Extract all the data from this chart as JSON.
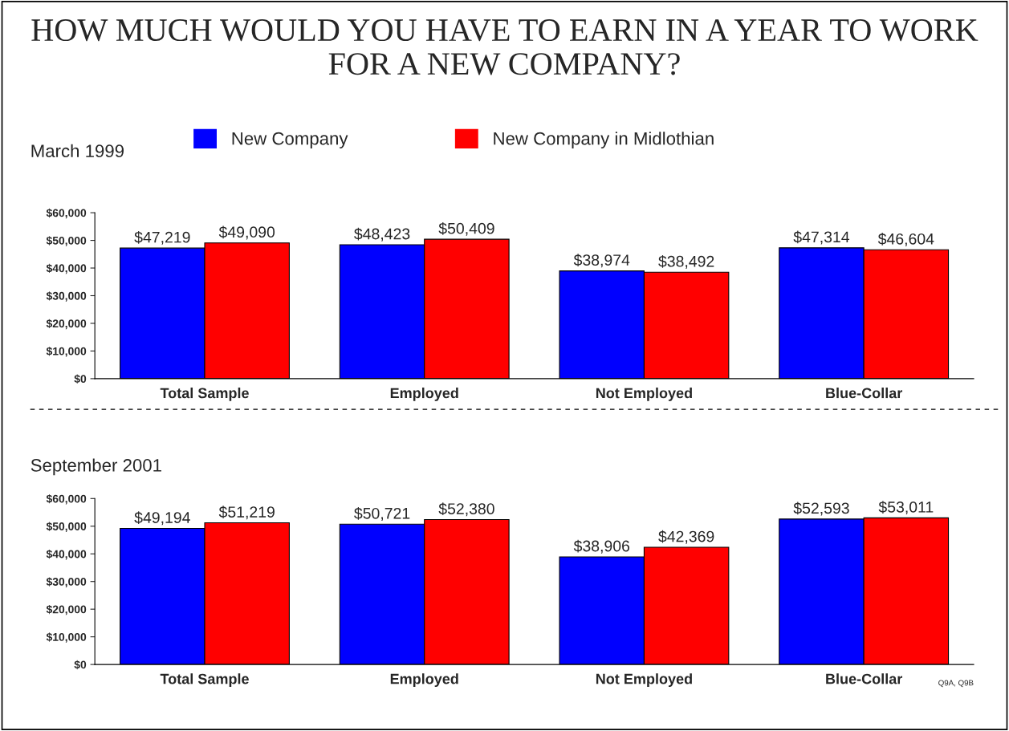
{
  "chart_data": [
    {
      "type": "bar",
      "title": "HOW MUCH WOULD YOU HAVE TO EARN IN A YEAR TO WORK FOR A NEW COMPANY?",
      "subtitle": "March 1999",
      "categories": [
        "Total Sample",
        "Employed",
        "Not Employed",
        "Blue-Collar"
      ],
      "series": [
        {
          "name": "New Company",
          "color": "#0000ff",
          "values": [
            47219,
            48423,
            38974,
            47314
          ],
          "value_labels": [
            "$47,219",
            "$48,423",
            "$38,974",
            "$47,314"
          ]
        },
        {
          "name": "New Company in Midlothian",
          "color": "#ff0000",
          "values": [
            49090,
            50409,
            38492,
            46604
          ],
          "value_labels": [
            "$49,090",
            "$50,409",
            "$38,492",
            "$46,604"
          ]
        }
      ],
      "ylim": [
        0,
        60000
      ],
      "yticks": [
        {
          "value": 0,
          "label": "$0"
        },
        {
          "value": 10000,
          "label": "$10,000"
        },
        {
          "value": 20000,
          "label": "$20,000"
        },
        {
          "value": 30000,
          "label": "$30,000"
        },
        {
          "value": 40000,
          "label": "$40,000"
        },
        {
          "value": 50000,
          "label": "$50,000"
        },
        {
          "value": 60000,
          "label": "$60,000"
        }
      ],
      "grid": false,
      "legend": "top"
    },
    {
      "type": "bar",
      "subtitle": "September 2001",
      "categories": [
        "Total Sample",
        "Employed",
        "Not Employed",
        "Blue-Collar"
      ],
      "series": [
        {
          "color": "#0000ff",
          "values": [
            49194,
            50721,
            38906,
            52593
          ],
          "value_labels": [
            "$49,194",
            "$50,721",
            "$38,906",
            "$52,593"
          ]
        },
        {
          "color": "#ff0000",
          "values": [
            51219,
            52380,
            42369,
            53011
          ],
          "value_labels": [
            "$51,219",
            "$52,380",
            "$42,369",
            "$53,011"
          ]
        }
      ],
      "ylim": [
        0,
        60000
      ],
      "yticks": [
        {
          "value": 0,
          "label": "$0"
        },
        {
          "value": 10000,
          "label": "$10,000"
        },
        {
          "value": 20000,
          "label": "$20,000"
        },
        {
          "value": 30000,
          "label": "$30,000"
        },
        {
          "value": 40000,
          "label": "$40,000"
        },
        {
          "value": 50000,
          "label": "$50,000"
        },
        {
          "value": 60000,
          "label": "$60,000"
        }
      ],
      "grid": false,
      "legend": false,
      "annotations": [
        "Q9A, Q9B"
      ]
    }
  ]
}
